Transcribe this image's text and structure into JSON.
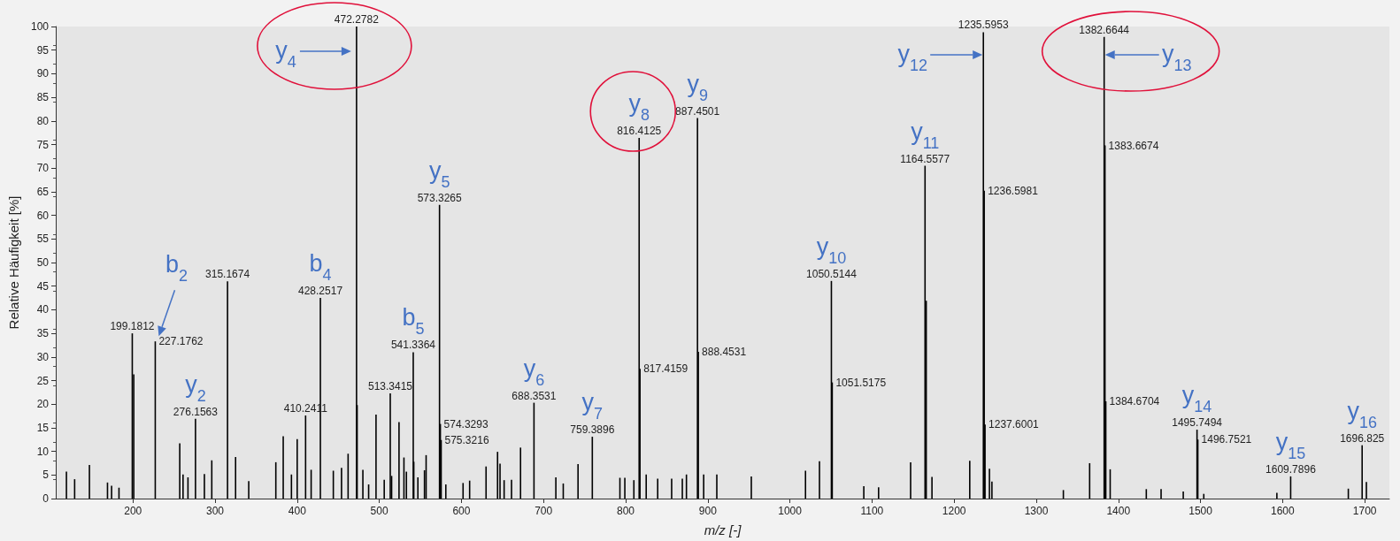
{
  "chart_data": {
    "type": "bar",
    "xlabel": "m/z [-]",
    "ylabel": "Relative Häufigkeit [%]",
    "x": [
      119,
      129,
      147,
      169,
      174,
      183,
      199.1812,
      201,
      227.1762,
      257,
      261,
      267,
      276.1563,
      287,
      296,
      315.1674,
      325,
      341,
      374,
      383,
      393,
      400,
      410.2411,
      417,
      428.2517,
      444,
      454,
      462,
      472.2782,
      473,
      480,
      487,
      496,
      506,
      513.3415,
      515,
      524,
      530,
      533,
      541.3364,
      542,
      547,
      555,
      557,
      573.3265,
      574.3293,
      575.3216,
      581,
      602,
      610,
      630,
      644,
      647,
      652,
      661,
      672,
      688.3531,
      715,
      724,
      742,
      759.3896,
      793,
      799,
      810,
      816.4125,
      817.4159,
      825,
      839,
      856,
      869,
      874,
      887.4501,
      888.4531,
      895,
      911,
      953,
      1019,
      1036,
      1050.5144,
      1051.5175,
      1090,
      1108,
      1147,
      1164.5577,
      1166,
      1173,
      1219,
      1235.5953,
      1236.5981,
      1237.6001,
      1243,
      1246,
      1333,
      1365,
      1382.6644,
      1383.6674,
      1384.6704,
      1390,
      1434,
      1452,
      1479,
      1495.7494,
      1496.7521,
      1504,
      1593,
      1609.7896,
      1680,
      1696.825,
      1702
    ],
    "values": [
      5.7,
      4.1,
      7.1,
      3.4,
      2.7,
      2.3,
      35,
      26.3,
      33.3,
      11.7,
      5.1,
      4.5,
      16.9,
      5.2,
      8.1,
      46,
      8.8,
      3.7,
      7.7,
      13.2,
      5.1,
      12.6,
      17.6,
      6.1,
      42.5,
      5.9,
      6.5,
      9.5,
      100,
      19.8,
      6.1,
      3,
      17.8,
      4,
      22.3,
      4.8,
      16.2,
      8.7,
      5.7,
      31,
      7.8,
      4.5,
      6,
      9.2,
      62.2,
      15.8,
      12.4,
      3,
      3.3,
      3.8,
      6.8,
      9.9,
      7.4,
      3.9,
      4,
      10.8,
      20.3,
      4.5,
      3.2,
      7.3,
      13.1,
      4.4,
      4.4,
      3.9,
      76.4,
      27.5,
      5.1,
      4.2,
      4.2,
      4.2,
      5.1,
      80.6,
      31.1,
      5.1,
      5.1,
      4.7,
      5.9,
      7.9,
      46.1,
      24.6,
      2.6,
      2.4,
      7.7,
      70.5,
      41.9,
      4.6,
      8,
      98.8,
      65.2,
      15.7,
      6.3,
      3.6,
      1.8,
      7.5,
      97.8,
      74.8,
      20.6,
      6.2,
      2,
      2,
      1.5,
      14.6,
      12.5,
      1,
      1.2,
      4.7,
      2.1,
      11.3,
      3.5
    ],
    "color": "#000000",
    "xlim": [
      106,
      1730
    ],
    "xticks": [
      200,
      300,
      400,
      500,
      600,
      700,
      800,
      900,
      1000,
      1100,
      1200,
      1300,
      1400,
      1500,
      1600,
      1700
    ],
    "ylim": [
      0,
      100
    ],
    "yticks": [
      0,
      5,
      10,
      15,
      20,
      25,
      30,
      35,
      40,
      45,
      50,
      55,
      60,
      65,
      70,
      75,
      80,
      85,
      90,
      95,
      100
    ],
    "annotations": [
      {
        "text": "199.1812",
        "x": 199.1812,
        "y": 35
      },
      {
        "text": "227.1762",
        "x": 227.1762,
        "y": 33.3
      },
      {
        "text": "276.1563",
        "x": 276.1563,
        "y": 16.9
      },
      {
        "text": "315.1674",
        "x": 315.1674,
        "y": 46
      },
      {
        "text": "410.2411",
        "x": 410.2411,
        "y": 17.6
      },
      {
        "text": "428.2517",
        "x": 428.2517,
        "y": 42.5
      },
      {
        "text": "472.2782",
        "x": 472.2782,
        "y": 100
      },
      {
        "text": "513.3415",
        "x": 513.3415,
        "y": 22.3
      },
      {
        "text": "541.3364",
        "x": 541.3364,
        "y": 31
      },
      {
        "text": "573.3265",
        "x": 573.3265,
        "y": 62.2
      },
      {
        "text": "574.3293",
        "x": 574.3293,
        "y": 15.8
      },
      {
        "text": "575.3216",
        "x": 575.3216,
        "y": 12.4
      },
      {
        "text": "688.3531",
        "x": 688.3531,
        "y": 20.3
      },
      {
        "text": "759.3896",
        "x": 759.3896,
        "y": 13.1
      },
      {
        "text": "816.4125",
        "x": 816.4125,
        "y": 76.4
      },
      {
        "text": "817.4159",
        "x": 817.4159,
        "y": 27.5
      },
      {
        "text": "887.4501",
        "x": 887.4501,
        "y": 80.6
      },
      {
        "text": "888.4531",
        "x": 888.4531,
        "y": 31.1
      },
      {
        "text": "1050.5144",
        "x": 1050.5144,
        "y": 46.1
      },
      {
        "text": "1051.5175",
        "x": 1051.5175,
        "y": 24.6
      },
      {
        "text": "1164.5577",
        "x": 1164.5577,
        "y": 70.5
      },
      {
        "text": "1235.5953",
        "x": 1235.5953,
        "y": 98.8
      },
      {
        "text": "1236.5981",
        "x": 1236.5981,
        "y": 65.2
      },
      {
        "text": "1237.6001",
        "x": 1237.6001,
        "y": 15.7
      },
      {
        "text": "1382.6644",
        "x": 1382.6644,
        "y": 97.8
      },
      {
        "text": "1383.6674",
        "x": 1383.6674,
        "y": 74.8
      },
      {
        "text": "1384.6704",
        "x": 1384.6704,
        "y": 20.6
      },
      {
        "text": "1495.7494",
        "x": 1495.7494,
        "y": 14.6
      },
      {
        "text": "1496.7521",
        "x": 1496.7521,
        "y": 12.5
      },
      {
        "text": "1609.7896",
        "x": 1609.7896,
        "y": 4.7
      },
      {
        "text": "1696.825",
        "x": 1696.825,
        "y": 11.3
      },
      {
        "text": "b$_{2}$",
        "x": 227.1762,
        "y": 33.3
      },
      {
        "text": "y$_{2}$",
        "x": 276.1563,
        "y": 16.9
      },
      {
        "text": "b$_{4}$",
        "x": 428.2517,
        "y": 42.5
      },
      {
        "text": "y$_{4}$",
        "x": 472.2782,
        "y": 100
      },
      {
        "text": "b$_{5}$",
        "x": 541.3364,
        "y": 31
      },
      {
        "text": "y$_{5}$",
        "x": 573.3265,
        "y": 62.2
      },
      {
        "text": "y$_{6}$",
        "x": 688.3531,
        "y": 20.3
      },
      {
        "text": "y$_{7}$",
        "x": 759.3896,
        "y": 13.1
      },
      {
        "text": "y$_{8}$",
        "x": 816.4125,
        "y": 76.4
      },
      {
        "text": "y$_{9}$",
        "x": 887.4501,
        "y": 80.6
      },
      {
        "text": "y$_{10}$",
        "x": 1050.5144,
        "y": 46.1
      },
      {
        "text": "y$_{11}$",
        "x": 1164.5577,
        "y": 70.5
      },
      {
        "text": "y$_{12}$",
        "x": 1235.5953,
        "y": 94
      },
      {
        "text": "y$_{13}$",
        "x": 1382.6644,
        "y": 94
      },
      {
        "text": "y$_{14}$",
        "x": 1495.7494,
        "y": 14.6
      },
      {
        "text": "y$_{15}$",
        "x": 1609.7896,
        "y": 4.7
      },
      {
        "text": "y$_{16}$",
        "x": 1696.825,
        "y": 11.3
      }
    ]
  }
}
